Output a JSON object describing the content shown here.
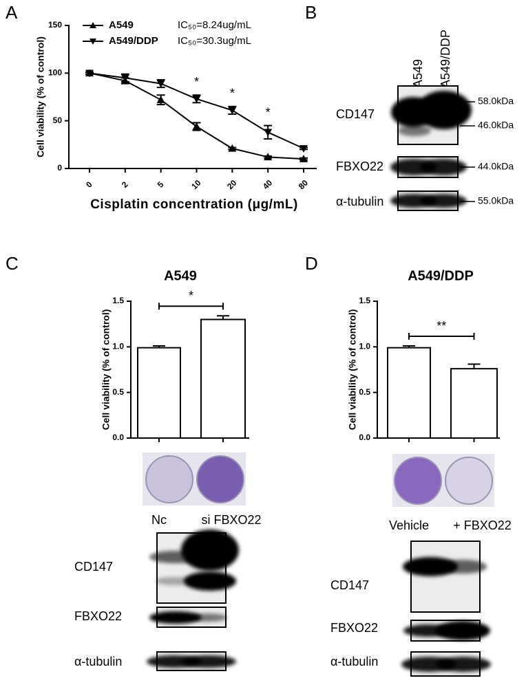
{
  "panels": [
    "A",
    "B",
    "C",
    "D"
  ],
  "chart_data": [
    {
      "type": "line",
      "xlabel": "Cisplatin concentration (μg/mL)",
      "ylabel": "Cell viability (% of control)",
      "categories": [
        "0",
        "2",
        "5",
        "10",
        "20",
        "40",
        "80"
      ],
      "ylim": [
        0,
        150
      ],
      "yticks": [
        0,
        50,
        100,
        150
      ],
      "series": [
        {
          "name": "A549",
          "ic50": "IC₅₀=8.24ug/mL",
          "color": "#000000",
          "marker": "triangle-up",
          "values": [
            100,
            92,
            72,
            44,
            21,
            12,
            10
          ],
          "errors": [
            1,
            3,
            5,
            4,
            1,
            1,
            1
          ]
        },
        {
          "name": "A549/DDP",
          "ic50": "IC₅₀=30.3ug/mL",
          "color": "#000000",
          "marker": "triangle-down",
          "values": [
            100,
            95,
            89,
            73,
            61,
            38,
            21
          ],
          "errors": [
            1,
            4,
            4,
            4,
            4,
            7,
            1
          ]
        }
      ],
      "annotations": [
        "*",
        "*",
        "*"
      ]
    },
    {
      "type": "bar",
      "title": "A549",
      "ylabel": "Cell viability (% of control)",
      "categories": [
        "Nc",
        "si FBXO22"
      ],
      "values": [
        0.99,
        1.3
      ],
      "errors": [
        0.02,
        0.04
      ],
      "color": "#ffffff",
      "ylim": [
        0,
        1.5
      ],
      "yticks": [
        {
          "value": 0,
          "label": "0.0"
        },
        {
          "value": 0.5,
          "label": "0.5"
        },
        {
          "value": 1,
          "label": "1.0"
        },
        {
          "value": 1.5,
          "label": "1.5"
        }
      ],
      "significance": "*"
    },
    {
      "type": "bar",
      "title": "A549/DDP",
      "ylabel": "Cell viability (% of control)",
      "categories": [
        "Vehicle",
        "+ FBXO22"
      ],
      "values": [
        0.99,
        0.76
      ],
      "errors": [
        0.02,
        0.05
      ],
      "color": "#ffffff",
      "ylim": [
        0,
        1.5
      ],
      "yticks": [
        {
          "value": 0,
          "label": "0.0"
        },
        {
          "value": 0.5,
          "label": "0.5"
        },
        {
          "value": 1,
          "label": "1.0"
        },
        {
          "value": 1.5,
          "label": "1.5"
        }
      ],
      "significance": "**"
    }
  ],
  "blots": [
    {
      "lanes": [
        "A549",
        "A549/DDP"
      ],
      "rows": [
        {
          "label": "CD147",
          "markers": [
            "58.0kDa",
            "46.0kDa"
          ]
        },
        {
          "label": "FBXO22",
          "markers": [
            "44.0kDa"
          ]
        },
        {
          "label": "α-tubulin",
          "markers": [
            "55.0kDa"
          ]
        }
      ]
    },
    {
      "rows": [
        {
          "label": "CD147"
        },
        {
          "label": "FBXO22"
        },
        {
          "label": "α-tubulin"
        }
      ]
    },
    {
      "rows": [
        {
          "label": "CD147"
        },
        {
          "label": "FBXO22"
        },
        {
          "label": "α-tubulin"
        }
      ]
    }
  ]
}
